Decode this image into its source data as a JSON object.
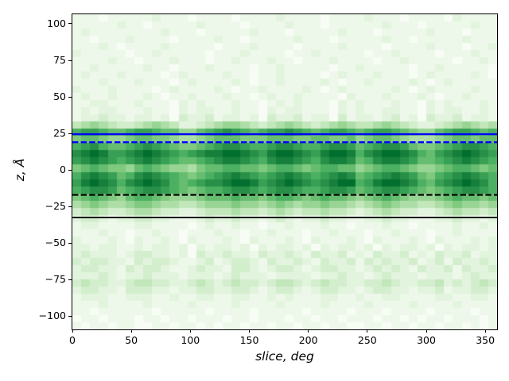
{
  "figure": {
    "background": "#ffffff"
  },
  "chart_data": {
    "type": "heatmap",
    "title": "",
    "xlabel": "slice, deg",
    "ylabel": "z, Å",
    "xlim": [
      0,
      360
    ],
    "ylim": [
      -109,
      106.5
    ],
    "grid_on": false,
    "legend": null,
    "xticks": {
      "values": [
        0,
        50,
        100,
        150,
        200,
        250,
        300,
        350
      ],
      "labels": [
        "0",
        "50",
        "100",
        "150",
        "200",
        "250",
        "300",
        "350"
      ]
    },
    "yticks": {
      "values": [
        100,
        75,
        50,
        25,
        0,
        -25,
        -50,
        -75,
        -100
      ],
      "labels": [
        "100",
        "75",
        "50",
        "25",
        "0",
        "−25",
        "−50",
        "−75",
        "−100"
      ]
    },
    "colormap": {
      "name": "Greens",
      "anchors": [
        [
          0.0,
          "#f7fcf5"
        ],
        [
          0.125,
          "#e5f5e0"
        ],
        [
          0.25,
          "#c7e9c0"
        ],
        [
          0.375,
          "#a1d99b"
        ],
        [
          0.5,
          "#74c476"
        ],
        [
          0.625,
          "#41ab5d"
        ],
        [
          0.75,
          "#238b45"
        ],
        [
          0.875,
          "#006d2c"
        ],
        [
          1.0,
          "#00441b"
        ]
      ]
    },
    "heatmap": {
      "cols": 48,
      "rows": 44,
      "x_range": [
        0,
        360
      ],
      "z_top": 106.5,
      "z_bottom": -109,
      "encoding": "one hex digit (0-f) per cell = relative density 0-15, rows listed top (z=106.5) to bottom (z=-109)",
      "rows_hex": [
        "111011111211101111011112111101111211101111021111",
        "111112110111112111101111211101111112111011111211",
        "121111111121110111112111011111211101111121110111",
        "110111211110111121101111121110111112110111112111",
        "111210111121111101112111101111211110111121110112",
        "211111011211111011121111011211111011211110111211",
        "111121101112111011211121101112111101121111101121",
        "112111112110111211110112111110112111110112111110",
        "121112111101211112110112111101211121110121111210",
        "111211121110121111210112111121011211112101211111",
        "211121111012111121011211112101211111210121111211",
        "121121112101121112110121121111021112111210112111",
        "112211121110212111211012121110212111211021211121",
        "121221112110212211211021221110212112211021221121",
        "122322122120322312212032231220312212312032231221",
        "456543345654223456654345654345654456543223456545",
        "9aa9889aa9886689aba989aaba989aa989aa9876689aa989",
        "788766788776556788877788877887786788765556788788",
        "9ab9889aba987789abba99abba99abba89abba87789abba9",
        "bcdcaabcdcba9abccddcbacddcbacddc9bcddcb98abcdcba",
        "abcba9abcba9889abccba9bccba9bccb89bccba889abcba9",
        "789877689876657889988789987899886789987667899878",
        "9bcba89bcba98789abcba9abcba9abcb89abcba879abcba9",
        "acdcb9bcdcb989abbcddcabcdcbabcdd9acddcb98abcdcb9",
        "9abba89abba987899abba9abba99abba89abba98789abba9",
        "789876899876667888988789987898876789876667898878",
        "567655677655445666766567656676654567655445676656",
        "345433455433223444544345434454432345433223454434",
        "233212233221112322322123212232211223221112232212",
        "122111122111101211211011211121101112110111121121",
        "111211011211011121101121110112111011211101121111",
        "211121021121021112102111210211121021112102111212",
        "221221121221202122120212212021221202122120212212",
        "232221233221203223221322321322312132231213223122",
        "323322132332112312332132232132231323223123132232",
        "233221323321123221332123321233221232321322313223",
        "222321223222122212322212222122322123222122212322",
        "343322344332234323433234432343322334322334232343",
        "233221333221223322332123321233221233221223122332",
        "122211222112112211221121211122112112211112211221",
        "111211112111121111211112111121111211112111121111",
        "110111111011111011110111110111101110111101111011",
        "011011101101101110110111011011011101101011011101",
        "101101100110110101101101101101100110110110110101"
      ]
    },
    "reference_lines": [
      {
        "name": "upper-solid-line",
        "z": 24.5,
        "color": "#0000ff",
        "style": "solid",
        "width": 2.3
      },
      {
        "name": "upper-dashed-line",
        "z": 19.0,
        "color": "#0000ff",
        "style": "dashed",
        "width": 2.3
      },
      {
        "name": "lower-dashed-line",
        "z": -17.0,
        "color": "#000000",
        "style": "dashed",
        "width": 2.2
      },
      {
        "name": "lower-solid-line",
        "z": -32.5,
        "color": "#000000",
        "style": "solid",
        "width": 1.8
      }
    ]
  }
}
